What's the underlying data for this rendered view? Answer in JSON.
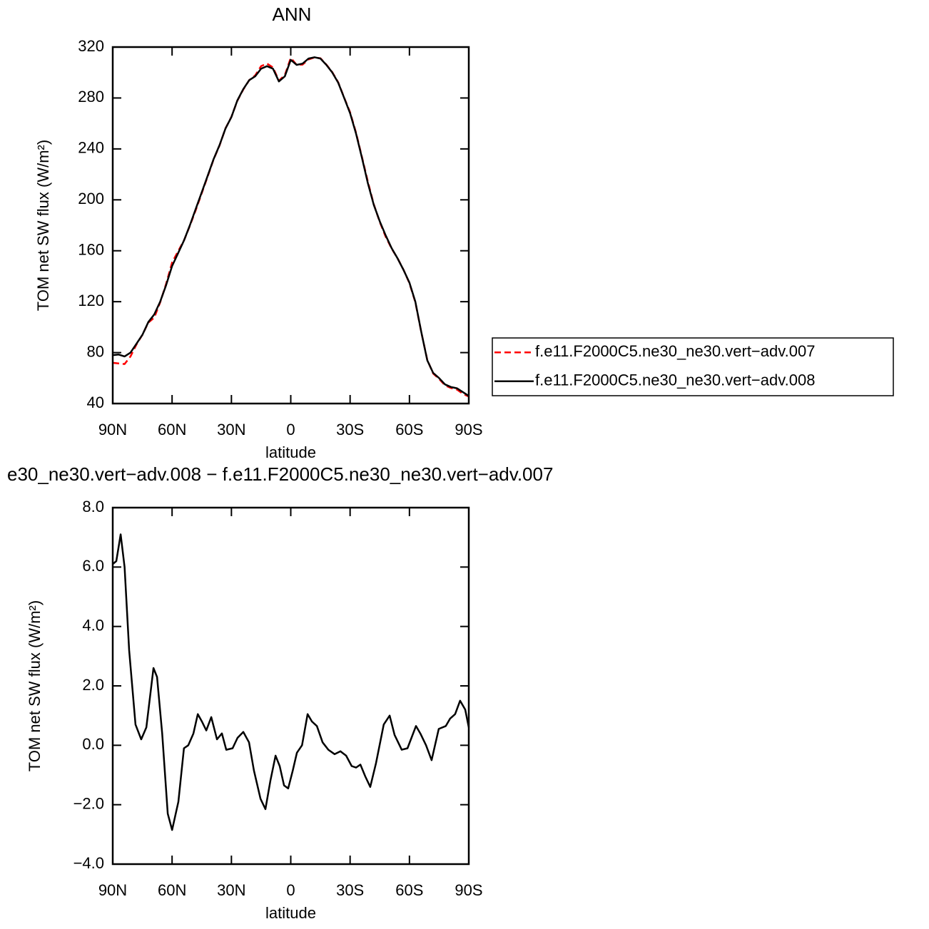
{
  "chart_data": [
    {
      "type": "line",
      "title": "ANN",
      "x_label": "latitude",
      "y_label": "TOM net SW flux (W/m²)",
      "xlim": [
        90,
        -90
      ],
      "xticks": [
        {
          "value": 90,
          "label": "90N"
        },
        {
          "value": 60,
          "label": "60N"
        },
        {
          "value": 30,
          "label": "30N"
        },
        0,
        {
          "value": -30,
          "label": "30S"
        },
        {
          "value": -60,
          "label": "60S"
        },
        {
          "value": -90,
          "label": "90S"
        }
      ],
      "ylim": [
        40,
        320
      ],
      "yticks": [
        40,
        80,
        120,
        160,
        200,
        240,
        280,
        320
      ],
      "legend": "right",
      "x": [
        90,
        87,
        84,
        81,
        78,
        75,
        72,
        69,
        66,
        63,
        60,
        57,
        54,
        51,
        48,
        45,
        42,
        39,
        36,
        33,
        30,
        27,
        24,
        21,
        18,
        15,
        12,
        9,
        6,
        3,
        0,
        -3,
        -6,
        -9,
        -12,
        -15,
        -18,
        -21,
        -24,
        -27,
        -30,
        -33,
        -36,
        -39,
        -42,
        -45,
        -48,
        -51,
        -54,
        -57,
        -60,
        -63,
        -66,
        -69,
        -72,
        -75,
        -78,
        -81,
        -84,
        -87,
        -90
      ],
      "series": [
        {
          "name": "f.e11.F2000C5.ne30_ne30.vert−adv.007",
          "color": "#ff0000",
          "dash": true,
          "values": [
            72,
            71.5,
            71,
            77,
            86.4,
            94,
            103.6,
            107.5,
            119.5,
            134,
            150.8,
            159.5,
            168,
            179.6,
            192,
            205.3,
            218.4,
            231.8,
            242.7,
            256.1,
            265.1,
            277.8,
            286.7,
            294,
            297.7,
            305,
            307,
            304,
            293.6,
            298,
            311.5,
            306,
            306.2,
            310.3,
            311.8,
            311.2,
            306.2,
            300.3,
            292.3,
            280.2,
            268.7,
            252.7,
            233.6,
            214.2,
            196.4,
            182.5,
            171,
            161.7,
            154.1,
            145.1,
            134.6,
            119.6,
            95.9,
            74.4,
            63.5,
            59.3,
            54.3,
            52.2,
            51,
            47.7,
            45.5
          ]
        },
        {
          "name": "f.e11.F2000C5.ne30_ne30.vert−adv.008",
          "color": "#000000",
          "dash": false,
          "values": [
            78,
            78.5,
            77,
            80,
            87,
            94,
            104,
            110,
            120,
            133,
            148,
            158,
            168,
            180,
            193,
            206,
            219,
            232,
            243,
            256,
            265,
            278,
            287,
            294,
            297,
            303,
            305,
            303,
            293,
            297,
            310,
            306,
            307,
            311,
            312,
            311,
            306,
            300,
            292,
            280,
            268,
            252,
            233,
            213,
            196,
            183,
            172,
            162,
            154,
            145,
            135,
            120,
            96,
            74,
            64,
            60,
            55,
            53,
            52,
            49,
            46
          ]
        }
      ]
    },
    {
      "type": "line",
      "title": "e30_ne30.vert−adv.008 − f.e11.F2000C5.ne30_ne30.vert−adv.007",
      "x_label": "latitude",
      "y_label": "TOM net SW flux (W/m²)",
      "xlim": [
        90,
        -90
      ],
      "xticks": [
        {
          "value": 90,
          "label": "90N"
        },
        {
          "value": 60,
          "label": "60N"
        },
        {
          "value": 30,
          "label": "30N"
        },
        0,
        {
          "value": -30,
          "label": "30S"
        },
        {
          "value": -60,
          "label": "60S"
        },
        {
          "value": -90,
          "label": "90S"
        }
      ],
      "ylim": [
        -4,
        8
      ],
      "yticks": [
        {
          "value": -4,
          "label": "−4.0"
        },
        {
          "value": -2,
          "label": "−2.0"
        },
        {
          "value": 0,
          "label": "0.0"
        },
        {
          "value": 2,
          "label": "2.0"
        },
        {
          "value": 4,
          "label": "4.0"
        },
        {
          "value": 6,
          "label": "6.0"
        },
        {
          "value": 8,
          "label": "8.0"
        }
      ],
      "x": [
        90,
        88.2,
        86,
        84,
        81.7,
        78.5,
        75.6,
        73,
        69.4,
        67.6,
        65,
        62.2,
        60,
        56.8,
        54,
        51.8,
        49.2,
        47,
        44.9,
        42.7,
        40.2,
        37.3,
        34.8,
        32.6,
        29.4,
        26.9,
        24,
        21.1,
        18.6,
        15.3,
        12.8,
        10.3,
        7.7,
        5.6,
        3.4,
        1.3,
        -1,
        -3.1,
        -5.7,
        -8.5,
        -10.7,
        -13.2,
        -16.1,
        -19,
        -22.2,
        -25.1,
        -28,
        -30.8,
        -33,
        -35.2,
        -37.7,
        -40.2,
        -43.1,
        -47,
        -50,
        -52.5,
        -56.1,
        -59,
        -63.3,
        -65.5,
        -68.4,
        -71.2,
        -74.8,
        -78.4,
        -80.6,
        -83.1,
        -85.6,
        -88.2,
        -90
      ],
      "series": [
        {
          "color": "#000000",
          "dash": false,
          "values": [
            6.1,
            6.2,
            7.1,
            6.0,
            3.2,
            0.7,
            0.2,
            0.6,
            2.6,
            2.3,
            0.4,
            -2.3,
            -2.85,
            -1.9,
            -0.1,
            0.0,
            0.4,
            1.05,
            0.8,
            0.5,
            0.95,
            0.2,
            0.4,
            -0.15,
            -0.1,
            0.25,
            0.45,
            0.1,
            -0.85,
            -1.8,
            -2.15,
            -1.2,
            -0.35,
            -0.7,
            -1.35,
            -1.45,
            -0.85,
            -0.25,
            0.0,
            1.05,
            0.8,
            0.65,
            0.1,
            -0.15,
            -0.3,
            -0.2,
            -0.35,
            -0.7,
            -0.75,
            -0.65,
            -1.05,
            -1.4,
            -0.6,
            0.7,
            1.0,
            0.35,
            -0.15,
            -0.1,
            0.65,
            0.4,
            0.0,
            -0.5,
            0.55,
            0.65,
            0.9,
            1.05,
            1.5,
            1.2,
            0.6
          ]
        }
      ]
    }
  ]
}
